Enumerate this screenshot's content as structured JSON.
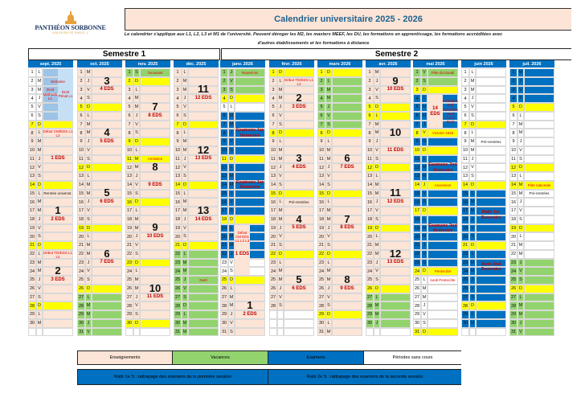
{
  "logo": {
    "name": "PANTHÉON SORBONNE",
    "sub": "UNIVERSITÉ PARIS 1"
  },
  "title": "Calendrier universitaire 2025 - 2026",
  "subtitle": "Le calendrier s'applique aux L1, L2, L3 et M1 de l'université. Peuvent déroger les M2, les masters MEEF, les DU, les formations en apprentissage, les formations accréditées avec d'autres établissements et les formations à distance",
  "semesters": [
    "Semestre 1",
    "Semestre 2"
  ],
  "colors": {
    "e": "#fce4d6",
    "v": "#92d36e",
    "x": "#0070c0",
    "w": "#ffffff",
    "y": "#ffff00",
    "b": "#9dc3e6",
    "light": "#c5e0f4"
  },
  "months": [
    {
      "label": "sept. 2025",
      "letters": "LMMJVSDLMMJVSDLMMJVSDLMMJVSDLM",
      "types": "bbbbbbyeeeeeeyeeeeeeyeeeeeeyee",
      "notes": [
        {
          "d": 1,
          "n": 6,
          "half": "right",
          "box": "light"
        },
        {
          "d": 2,
          "n": 1,
          "half": "full",
          "cls": "red",
          "text": "Semaine"
        },
        {
          "d": 3,
          "n": 2,
          "half": "left",
          "cls": "red",
          "text": "Droit Méthodo L1"
        },
        {
          "d": 3,
          "n": 2,
          "half": "right",
          "cls": "red",
          "text": "Droit Pénal L1"
        },
        {
          "d": 8,
          "n": 2,
          "half": "full",
          "cls": "red",
          "text": "Début CM/EDS L1 L2"
        },
        {
          "d": 11,
          "n": 1,
          "half": "full",
          "cls": "eds",
          "text": "1 EDS"
        },
        {
          "d": 15,
          "n": 1,
          "half": "full",
          "cls": "black",
          "text": "Rentrée universit."
        },
        {
          "d": 16,
          "n": 2,
          "half": "full",
          "cls": "week",
          "text": "1"
        },
        {
          "d": 18,
          "n": 1,
          "half": "full",
          "cls": "eds",
          "text": "2 EDS"
        },
        {
          "d": 22,
          "n": 2,
          "half": "full",
          "cls": "red",
          "text": "Début TD/EDS L1 L2"
        },
        {
          "d": 23,
          "n": 2,
          "half": "full",
          "cls": "week",
          "text": "2"
        },
        {
          "d": 25,
          "n": 1,
          "half": "full",
          "cls": "eds",
          "text": "3 EDS"
        }
      ]
    },
    {
      "label": "oct. 2025",
      "letters": "MJVSDLMMJVSDLMMJVSDLMMJVSDLMMJV",
      "types": "eeeeyeeeeeeyeeeeeeyeeeeeeyvvvvv",
      "notes": [
        {
          "d": 1,
          "n": 2,
          "half": "full",
          "cls": "week",
          "text": "3"
        },
        {
          "d": 3,
          "n": 1,
          "half": "full",
          "cls": "eds",
          "text": "4 EDS"
        },
        {
          "d": 8,
          "n": 1,
          "half": "full",
          "cls": "week",
          "text": "4"
        },
        {
          "d": 9,
          "n": 1,
          "half": "full",
          "cls": "eds",
          "text": "5 EDS"
        },
        {
          "d": 15,
          "n": 1,
          "half": "full",
          "cls": "week",
          "text": "5"
        },
        {
          "d": 16,
          "n": 1,
          "half": "full",
          "cls": "eds",
          "text": "6 EDS"
        },
        {
          "d": 22,
          "n": 1,
          "half": "full",
          "cls": "week",
          "text": "6"
        },
        {
          "d": 23,
          "n": 1,
          "half": "full",
          "cls": "eds",
          "text": "7 EDS"
        }
      ]
    },
    {
      "label": "nov. 2025",
      "letters": "SDLMMJVSDLMMJVSDLMMJVSDLMMJVSD",
      "types": "vyeeeeeeyeyeeeeyeeeeeeyeeeeeey",
      "notes": [
        {
          "d": 1,
          "n": 1,
          "half": "full",
          "cls": "red",
          "text": "Toussaint"
        },
        {
          "d": 5,
          "n": 1,
          "half": "full",
          "cls": "week",
          "text": "7"
        },
        {
          "d": 6,
          "n": 1,
          "half": "full",
          "cls": "eds",
          "text": "8 EDS"
        },
        {
          "d": 11,
          "n": 1,
          "half": "full",
          "cls": "red",
          "text": "Armistice"
        },
        {
          "d": 12,
          "n": 1,
          "half": "full",
          "cls": "week",
          "text": "8"
        },
        {
          "d": 14,
          "n": 1,
          "half": "full",
          "cls": "eds",
          "text": "9 EDS"
        },
        {
          "d": 19,
          "n": 1,
          "half": "full",
          "cls": "week",
          "text": "9"
        },
        {
          "d": 20,
          "n": 1,
          "half": "full",
          "cls": "eds",
          "text": "10 EDS"
        },
        {
          "d": 26,
          "n": 1,
          "half": "full",
          "cls": "week",
          "text": "10"
        },
        {
          "d": 27,
          "n": 1,
          "half": "full",
          "cls": "eds",
          "text": "11 EDS"
        }
      ]
    },
    {
      "label": "déc. 2025",
      "letters": "LMMJVSDLMMJVSDLMMJVSDLMMJVSDLMM",
      "types": "eeeeeeyeeeeeeyeeeeeeyvvvvvvvvvv",
      "notes": [
        {
          "d": 3,
          "n": 1,
          "half": "full",
          "cls": "week",
          "text": "11"
        },
        {
          "d": 4,
          "n": 1,
          "half": "full",
          "cls": "eds",
          "text": "12 EDS"
        },
        {
          "d": 9,
          "n": 2,
          "half": "full",
          "cls": "week",
          "text": "12"
        },
        {
          "d": 11,
          "n": 1,
          "half": "full",
          "cls": "eds",
          "text": "13 EDS"
        },
        {
          "d": 16,
          "n": 2,
          "half": "full",
          "cls": "week",
          "text": "13"
        },
        {
          "d": 18,
          "n": 1,
          "half": "full",
          "cls": "eds",
          "text": "14 EDS"
        },
        {
          "d": 25,
          "n": 1,
          "half": "full",
          "cls": "red",
          "text": "Noël"
        }
      ]
    },
    {
      "label": "janv. 2026",
      "letters": "JVSDLMMJVSDLMMJVSDLMMJVSDLMMJVS",
      "types": "vvvywxxxxxyxxxxxxyxxxxwwyeeeeee",
      "notes": [
        {
          "d": 1,
          "n": 1,
          "half": "full",
          "cls": "red",
          "text": "Nouvel an"
        },
        {
          "d": 7,
          "n": 3,
          "half": "full",
          "cls": "redbig",
          "text": "Examens 1er Semestre"
        },
        {
          "d": 13,
          "n": 3,
          "half": "full",
          "cls": "redbig",
          "text": "Examens 1er Semestre"
        },
        {
          "d": 19,
          "n": 6,
          "half": "left",
          "box": "e"
        },
        {
          "d": 19,
          "n": 3,
          "half": "left",
          "cls": "red",
          "text": "Début CM ED1 L1 L2 L3"
        },
        {
          "d": 22,
          "n": 1,
          "half": "left",
          "cls": "eds",
          "text": "1 EDS"
        },
        {
          "d": 27,
          "n": 2,
          "half": "full",
          "cls": "week",
          "text": "1"
        },
        {
          "d": 29,
          "n": 1,
          "half": "full",
          "cls": "eds",
          "text": "2 EDS"
        }
      ]
    },
    {
      "label": "févr. 2026",
      "letters": "DLMMJVSDLMMJVSDLMMJVSDLMMJVS",
      "types": "yeeeeeeyeeeeeeyeeeeeeyeeeeee",
      "notes": [
        {
          "d": 2,
          "n": 2,
          "half": "full",
          "cls": "red",
          "text": "Début TD/EDS L1 L2"
        },
        {
          "d": 4,
          "n": 1,
          "half": "full",
          "cls": "week",
          "text": "2"
        },
        {
          "d": 5,
          "n": 1,
          "half": "full",
          "cls": "eds",
          "text": "3 EDS"
        },
        {
          "d": 11,
          "n": 1,
          "half": "full",
          "cls": "week",
          "text": "3"
        },
        {
          "d": 12,
          "n": 1,
          "half": "full",
          "cls": "eds",
          "text": "4 EDS"
        },
        {
          "d": 16,
          "n": 1,
          "half": "full",
          "cls": "black",
          "text": "Pré-rentrées"
        },
        {
          "d": 18,
          "n": 1,
          "half": "full",
          "cls": "week",
          "text": "4"
        },
        {
          "d": 19,
          "n": 1,
          "half": "full",
          "cls": "eds",
          "text": "5 EDS"
        },
        {
          "d": 25,
          "n": 1,
          "half": "full",
          "cls": "week",
          "text": "5"
        },
        {
          "d": 26,
          "n": 1,
          "half": "full",
          "cls": "eds",
          "text": "6 EDS"
        }
      ]
    },
    {
      "label": "mars 2026",
      "letters": "DLMMJVSDLMMJVSDLMMJVSDLMMJVSDLM",
      "types": "yvvvvvvyeeeeeeyeeeeeeyeeeeeeyee",
      "notes": [
        {
          "d": 11,
          "n": 1,
          "half": "full",
          "cls": "week",
          "text": "6"
        },
        {
          "d": 12,
          "n": 1,
          "half": "full",
          "cls": "eds",
          "text": "7 EDS"
        },
        {
          "d": 18,
          "n": 1,
          "half": "full",
          "cls": "week",
          "text": "7"
        },
        {
          "d": 19,
          "n": 1,
          "half": "full",
          "cls": "eds",
          "text": "8 EDS"
        },
        {
          "d": 25,
          "n": 1,
          "half": "full",
          "cls": "week",
          "text": "8"
        },
        {
          "d": 26,
          "n": 1,
          "half": "full",
          "cls": "eds",
          "text": "9 EDS"
        }
      ]
    },
    {
      "label": "avr. 2026",
      "letters": "MJVSDLMMJVSDLMMJVSDLMMJVSDLMMJ",
      "types": "eeeeyyeeeeeyeeeeeeyeeeeeeyvvvv",
      "notes": [
        {
          "d": 2,
          "n": 1,
          "half": "full",
          "cls": "week",
          "text": "9"
        },
        {
          "d": 3,
          "n": 1,
          "half": "full",
          "cls": "eds",
          "text": "10 EDS"
        },
        {
          "d": 8,
          "n": 1,
          "half": "full",
          "cls": "week",
          "text": "10"
        },
        {
          "d": 10,
          "n": 1,
          "half": "full",
          "cls": "eds",
          "text": "11 EDS"
        },
        {
          "d": 15,
          "n": 1,
          "half": "full",
          "cls": "week",
          "text": "11"
        },
        {
          "d": 16,
          "n": 1,
          "half": "full",
          "cls": "eds",
          "text": "12 EDS"
        },
        {
          "d": 22,
          "n": 1,
          "half": "full",
          "cls": "week",
          "text": "12"
        },
        {
          "d": 23,
          "n": 1,
          "half": "full",
          "cls": "eds",
          "text": "13 EDS"
        }
      ]
    },
    {
      "label": "mai 2026",
      "letters": "VSDLMMJVSDLMMJVSDLMMJVSDLMMJVSD",
      "types": "vvyxxxxyxyxxxyxxyxxxxxxywwwwwwy",
      "notes": [
        {
          "d": 1,
          "n": 1,
          "half": "full",
          "cls": "red",
          "text": "Fête du travail"
        },
        {
          "d": 4,
          "n": 4,
          "half": "left",
          "box": "e"
        },
        {
          "d": 5,
          "n": 2,
          "half": "left",
          "cls": "eds",
          "text": "14 EDS"
        },
        {
          "d": 4,
          "n": 4,
          "half": "right",
          "cls": "red",
          "text": "Examens 2nd semestre sauf L1L2 Droit"
        },
        {
          "d": 8,
          "n": 1,
          "half": "full",
          "cls": "red",
          "text": "Victoire 1945"
        },
        {
          "d": 11,
          "n": 3,
          "half": "full",
          "cls": "redbig",
          "text": "Examens 2nd Semestre"
        },
        {
          "d": 14,
          "n": 1,
          "half": "full",
          "cls": "red",
          "text": "Ascension"
        },
        {
          "d": 18,
          "n": 3,
          "half": "full",
          "cls": "redbig",
          "text": "Examens 2nd Semestre"
        },
        {
          "d": 24,
          "n": 1,
          "half": "full",
          "cls": "red",
          "text": "Pentecôte"
        },
        {
          "d": 25,
          "n": 1,
          "half": "full",
          "cls": "red",
          "text": "lundi Pentecôte"
        }
      ]
    },
    {
      "label": "juin 2026",
      "letters": "LMMJVSDLMMJVSDLMMJVSDLMMJVSDLM",
      "types": "wwwwwwywwwwwwyxxxxxxyxxxxxxyxx",
      "notes": [
        {
          "d": 9,
          "n": 1,
          "half": "full",
          "cls": "black",
          "text": "Pré-rentrées"
        },
        {
          "d": 17,
          "n": 2,
          "half": "full",
          "cls": "redbig",
          "text": "Rattr 1er Semestre"
        },
        {
          "d": 23,
          "n": 2,
          "half": "full",
          "cls": "redbig",
          "text": "Rattr 2nd Semestre"
        }
      ]
    },
    {
      "label": "juil. 2026",
      "letters": "MJVSDLMMJVSDLMMJVSDLMMJVSDLMMJV",
      "types": "xxxxywwwwwwywywwwwywwwvvvyvvvvv",
      "notes": [
        {
          "d": 14,
          "n": 1,
          "half": "full",
          "cls": "red",
          "text": "Fête nationale"
        },
        {
          "d": 15,
          "n": 1,
          "half": "full",
          "cls": "black",
          "text": "Pré-rentrées"
        }
      ]
    }
  ],
  "legend": {
    "enseignements": "Enseignements",
    "vacances": "Vacances",
    "examens": "Examens",
    "periodes": "Périodes sans cours",
    "rattr1": "Rattr 1e S : rattrapage des examens de la première session",
    "rattr2": "Rattr 2e S : rattrapage des examens de la seconde session"
  }
}
